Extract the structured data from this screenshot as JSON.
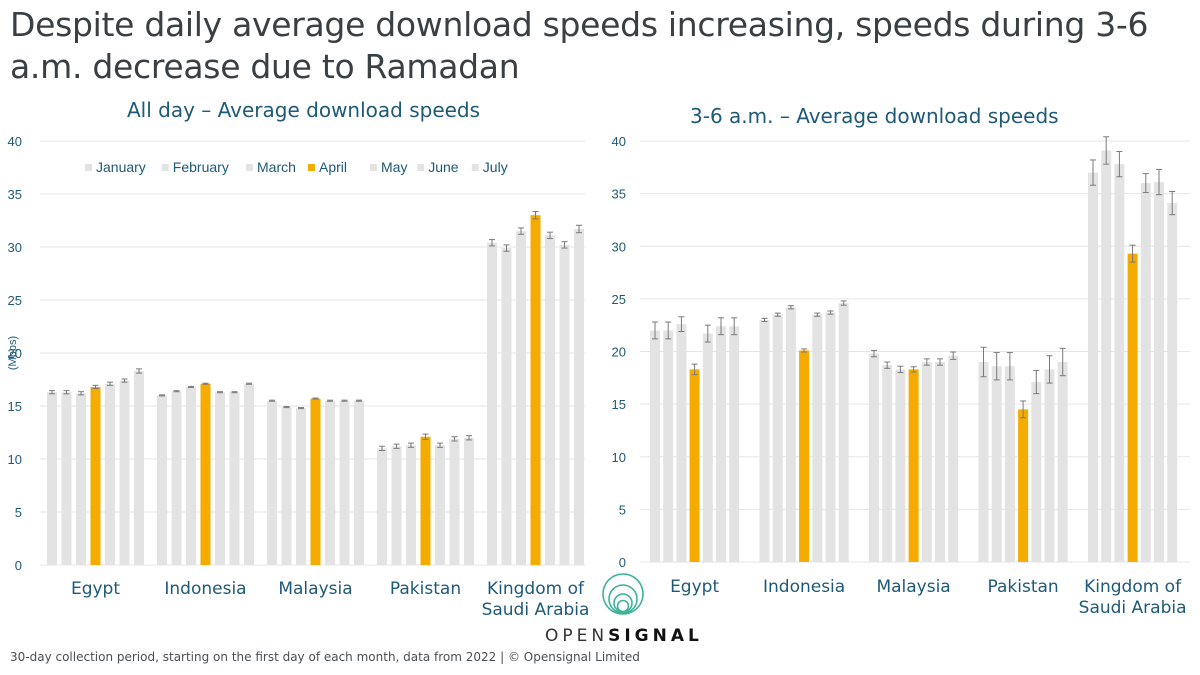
{
  "headline": "Despite daily average download speeds increasing, speeds during 3-6 a.m. decrease due to Ramadan",
  "footer": "30-day collection period, starting on the first day of each month, data from 2022 | © Opensignal Limited",
  "brand": {
    "light": "OPEN",
    "bold": "SIGNAL"
  },
  "colors": {
    "highlight": "#f5ab00",
    "base": "#e4e3e4",
    "error_bar": "#7a7a7a",
    "axis_text": "#1e5a78",
    "grid": "#e6e6e6",
    "logo": "#3bb39a"
  },
  "chart_data": [
    {
      "type": "bar",
      "title": "All day – Average download speeds",
      "xlabel": "",
      "ylabel": "(Mbps)",
      "ylim": [
        0,
        40
      ],
      "yticks": [
        0,
        5,
        10,
        15,
        20,
        25,
        30,
        35,
        40
      ],
      "grid": true,
      "legend": "top-left",
      "highlight_series": "April",
      "categories": [
        "Egypt",
        "Indonesia",
        "Malaysia",
        "Pakistan",
        "Kingdom of Saudi Arabia"
      ],
      "series": [
        {
          "name": "January",
          "values": [
            16.3,
            16.0,
            15.5,
            11.0,
            30.4
          ],
          "error": [
            0.15,
            0.05,
            0.05,
            0.2,
            0.3
          ]
        },
        {
          "name": "February",
          "values": [
            16.3,
            16.4,
            14.9,
            11.2,
            29.9
          ],
          "error": [
            0.15,
            0.05,
            0.05,
            0.2,
            0.3
          ]
        },
        {
          "name": "March",
          "values": [
            16.2,
            16.8,
            14.8,
            11.3,
            31.5
          ],
          "error": [
            0.15,
            0.05,
            0.05,
            0.2,
            0.3
          ]
        },
        {
          "name": "April",
          "values": [
            16.8,
            17.1,
            15.7,
            12.1,
            33.0
          ],
          "error": [
            0.15,
            0.05,
            0.05,
            0.25,
            0.35
          ]
        },
        {
          "name": "May",
          "values": [
            17.1,
            16.3,
            15.5,
            11.3,
            31.1
          ],
          "error": [
            0.15,
            0.05,
            0.05,
            0.2,
            0.3
          ]
        },
        {
          "name": "June",
          "values": [
            17.4,
            16.3,
            15.5,
            11.9,
            30.2
          ],
          "error": [
            0.15,
            0.05,
            0.05,
            0.2,
            0.3
          ]
        },
        {
          "name": "July",
          "values": [
            18.3,
            17.1,
            15.5,
            12.0,
            31.7
          ],
          "error": [
            0.2,
            0.05,
            0.05,
            0.2,
            0.35
          ]
        }
      ]
    },
    {
      "type": "bar",
      "title": "3-6 a.m. – Average download speeds",
      "xlabel": "",
      "ylabel": "",
      "ylim": [
        0,
        40
      ],
      "yticks": [
        0,
        5,
        10,
        15,
        20,
        25,
        30,
        35,
        40
      ],
      "grid": true,
      "legend": "none",
      "highlight_series": "April",
      "categories": [
        "Egypt",
        "Indonesia",
        "Malaysia",
        "Pakistan",
        "Kingdom of Saudi Arabia"
      ],
      "series": [
        {
          "name": "January",
          "values": [
            22.0,
            23.0,
            19.8,
            19.0,
            37.0
          ],
          "error": [
            0.8,
            0.15,
            0.3,
            1.4,
            1.2
          ]
        },
        {
          "name": "February",
          "values": [
            22.0,
            23.5,
            18.7,
            18.6,
            39.1
          ],
          "error": [
            0.8,
            0.15,
            0.3,
            1.3,
            1.3
          ]
        },
        {
          "name": "March",
          "values": [
            22.6,
            24.2,
            18.3,
            18.6,
            37.8
          ],
          "error": [
            0.7,
            0.15,
            0.3,
            1.3,
            1.2
          ]
        },
        {
          "name": "April",
          "values": [
            18.3,
            20.1,
            18.3,
            14.5,
            29.3
          ],
          "error": [
            0.5,
            0.15,
            0.25,
            0.8,
            0.8
          ]
        },
        {
          "name": "May",
          "values": [
            21.7,
            23.5,
            19.0,
            17.1,
            36.0
          ],
          "error": [
            0.8,
            0.15,
            0.3,
            1.1,
            0.9
          ]
        },
        {
          "name": "June",
          "values": [
            22.4,
            23.7,
            19.0,
            18.3,
            36.1
          ],
          "error": [
            0.8,
            0.15,
            0.3,
            1.3,
            1.2
          ]
        },
        {
          "name": "July",
          "values": [
            22.4,
            24.6,
            19.6,
            19.0,
            34.1
          ],
          "error": [
            0.8,
            0.2,
            0.35,
            1.3,
            1.1
          ]
        }
      ]
    }
  ]
}
